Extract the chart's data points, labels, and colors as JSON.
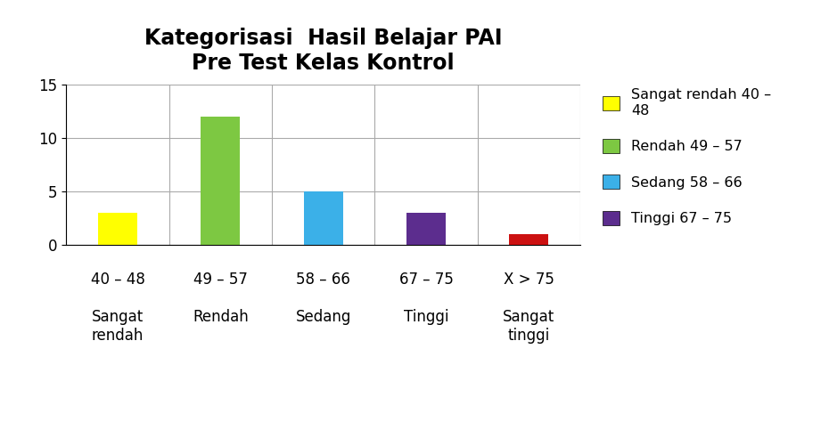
{
  "title": "Kategorisasi  Hasil Belajar PAI\nPre Test Kelas Kontrol",
  "categories": [
    "40 – 48",
    "49 – 57",
    "58 – 66",
    "67 – 75",
    "X > 75"
  ],
  "sublabels": [
    "Sangat\nrendah",
    "Rendah",
    "Sedang",
    "Tinggi",
    "Sangat\ntinggi"
  ],
  "values": [
    3,
    12,
    5,
    3,
    1
  ],
  "bar_colors": [
    "#FFFF00",
    "#7DC842",
    "#3BB0E8",
    "#5C2D8E",
    "#CC1111"
  ],
  "ylim": [
    0,
    15
  ],
  "yticks": [
    0,
    5,
    10,
    15
  ],
  "legend_labels": [
    "Sangat rendah 40 –\n48",
    "Rendah 49 – 57",
    "Sedang 58 – 66",
    "Tinggi 67 – 75"
  ],
  "legend_colors": [
    "#FFFF00",
    "#7DC842",
    "#3BB0E8",
    "#5C2D8E"
  ],
  "background_color": "#FFFFFF",
  "title_fontsize": 17,
  "tick_fontsize": 12,
  "label_fontsize": 12
}
